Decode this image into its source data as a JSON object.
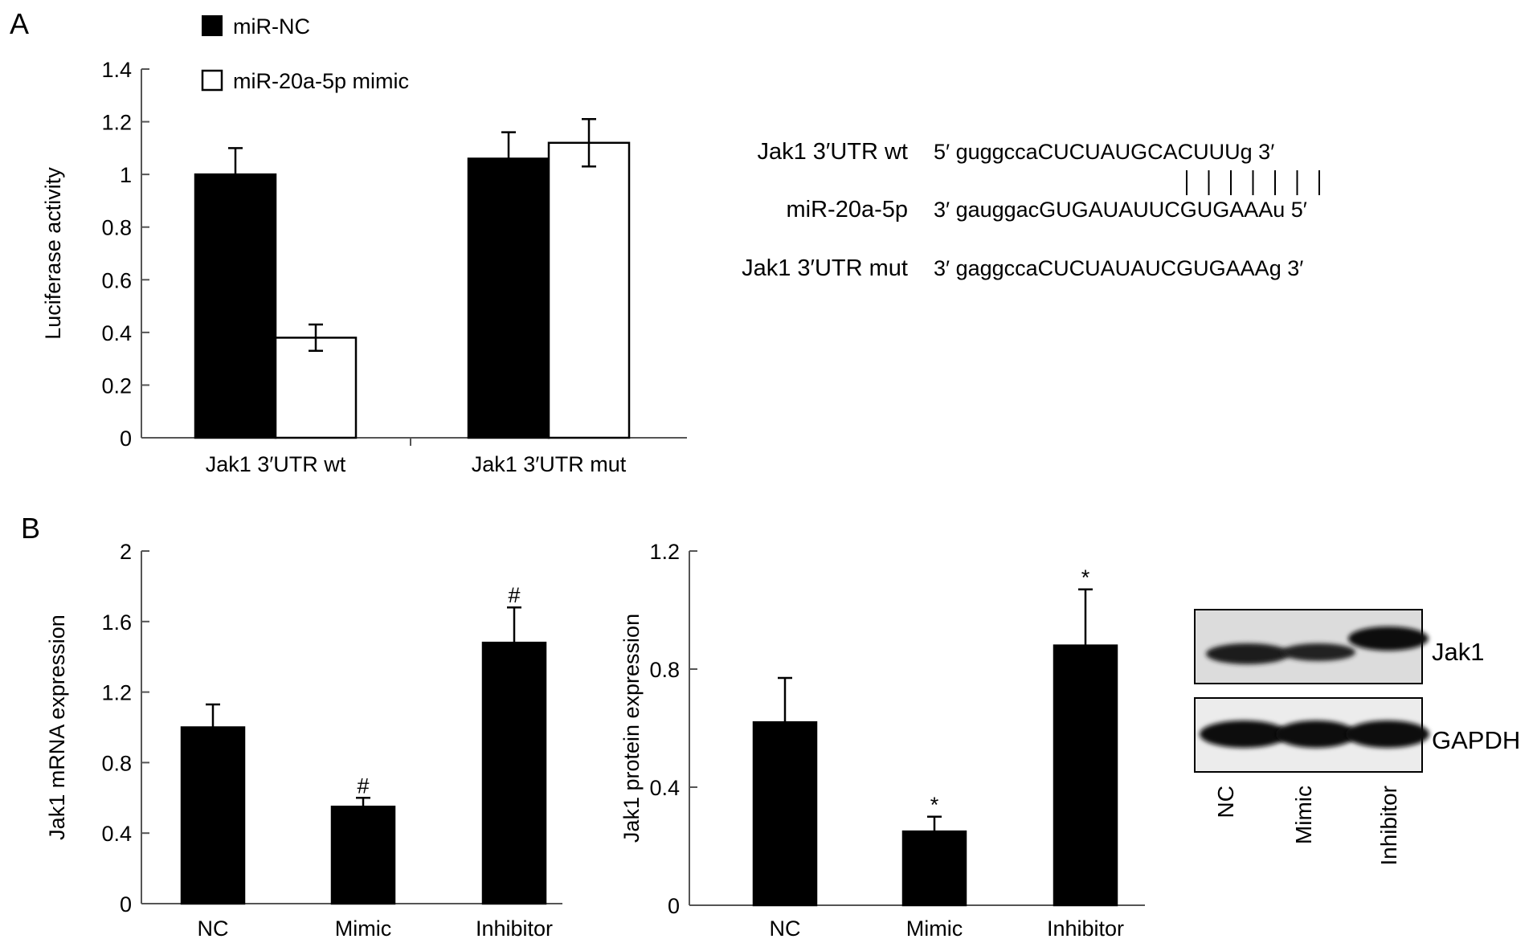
{
  "colors": {
    "filled": "#000000",
    "open": "#ffffff"
  },
  "panelA": {
    "label": "A",
    "legend": [
      {
        "name": "miR-NC",
        "swatch": "filled"
      },
      {
        "name": "miR-20a-5p mimic",
        "swatch": "open"
      }
    ],
    "sequences": {
      "wt_label": "Jak1 3′UTR wt",
      "wt_seq": "5′ guggccaCUCUAUGCACUUUg 3′",
      "mir_label": "miR-20a-5p",
      "mir_seq": "3′ gauggacGUGAUAUUCGUGAAAu 5′",
      "mut_label": "Jak1 3′UTR mut",
      "mut_seq": "3′ gaggccaCUCUAUAUCGUGAAAg 3′",
      "pairing_lines": 7
    }
  },
  "panelB": {
    "label": "B",
    "blot": {
      "band_labels": [
        "Jak1",
        "GAPDH"
      ],
      "lanes": [
        "NC",
        "Mimic",
        "Inhibitor"
      ]
    }
  },
  "chart_data": [
    {
      "type": "bar",
      "ylabel": "Luciferase activity",
      "categories": [
        "Jak1 3′UTR wt",
        "Jak1 3′UTR mut"
      ],
      "ylim": [
        0,
        1.4
      ],
      "yticks": [
        0,
        0.2,
        0.4,
        0.6,
        0.8,
        1,
        1.2,
        1.4
      ],
      "ytick_labels": [
        "0",
        "0.2",
        "0.4",
        "0.6",
        "0.8",
        "1",
        "1.2",
        "1.4"
      ],
      "series": [
        {
          "name": "miR-NC",
          "values": [
            1.0,
            1.06
          ],
          "errors": [
            0.1,
            0.1
          ]
        },
        {
          "name": "miR-20a-5p mimic",
          "values": [
            0.38,
            1.12
          ],
          "errors": [
            0.05,
            0.09
          ]
        }
      ]
    },
    {
      "type": "bar",
      "ylabel": "Jak1 mRNA expression",
      "categories": [
        "NC",
        "Mimic",
        "Inhibitor"
      ],
      "ylim": [
        0,
        2
      ],
      "yticks": [
        0,
        0.4,
        0.8,
        1.2,
        1.6,
        2
      ],
      "ytick_labels": [
        "0",
        "0.4",
        "0.8",
        "1.2",
        "1.6",
        "2"
      ],
      "values": [
        1.0,
        0.55,
        1.48
      ],
      "errors": [
        0.13,
        0.05,
        0.2
      ],
      "annotations": [
        "",
        "#",
        "#"
      ]
    },
    {
      "type": "bar",
      "ylabel": "Jak1 protein expression",
      "categories": [
        "NC",
        "Mimic",
        "Inhibitor"
      ],
      "ylim": [
        0,
        1.2
      ],
      "yticks": [
        0,
        0.4,
        0.8,
        1.2
      ],
      "ytick_labels": [
        "0",
        "0.4",
        "0.8",
        "1.2"
      ],
      "values": [
        0.62,
        0.25,
        0.88
      ],
      "errors": [
        0.15,
        0.05,
        0.19
      ],
      "annotations": [
        "",
        "*",
        "*"
      ]
    }
  ]
}
